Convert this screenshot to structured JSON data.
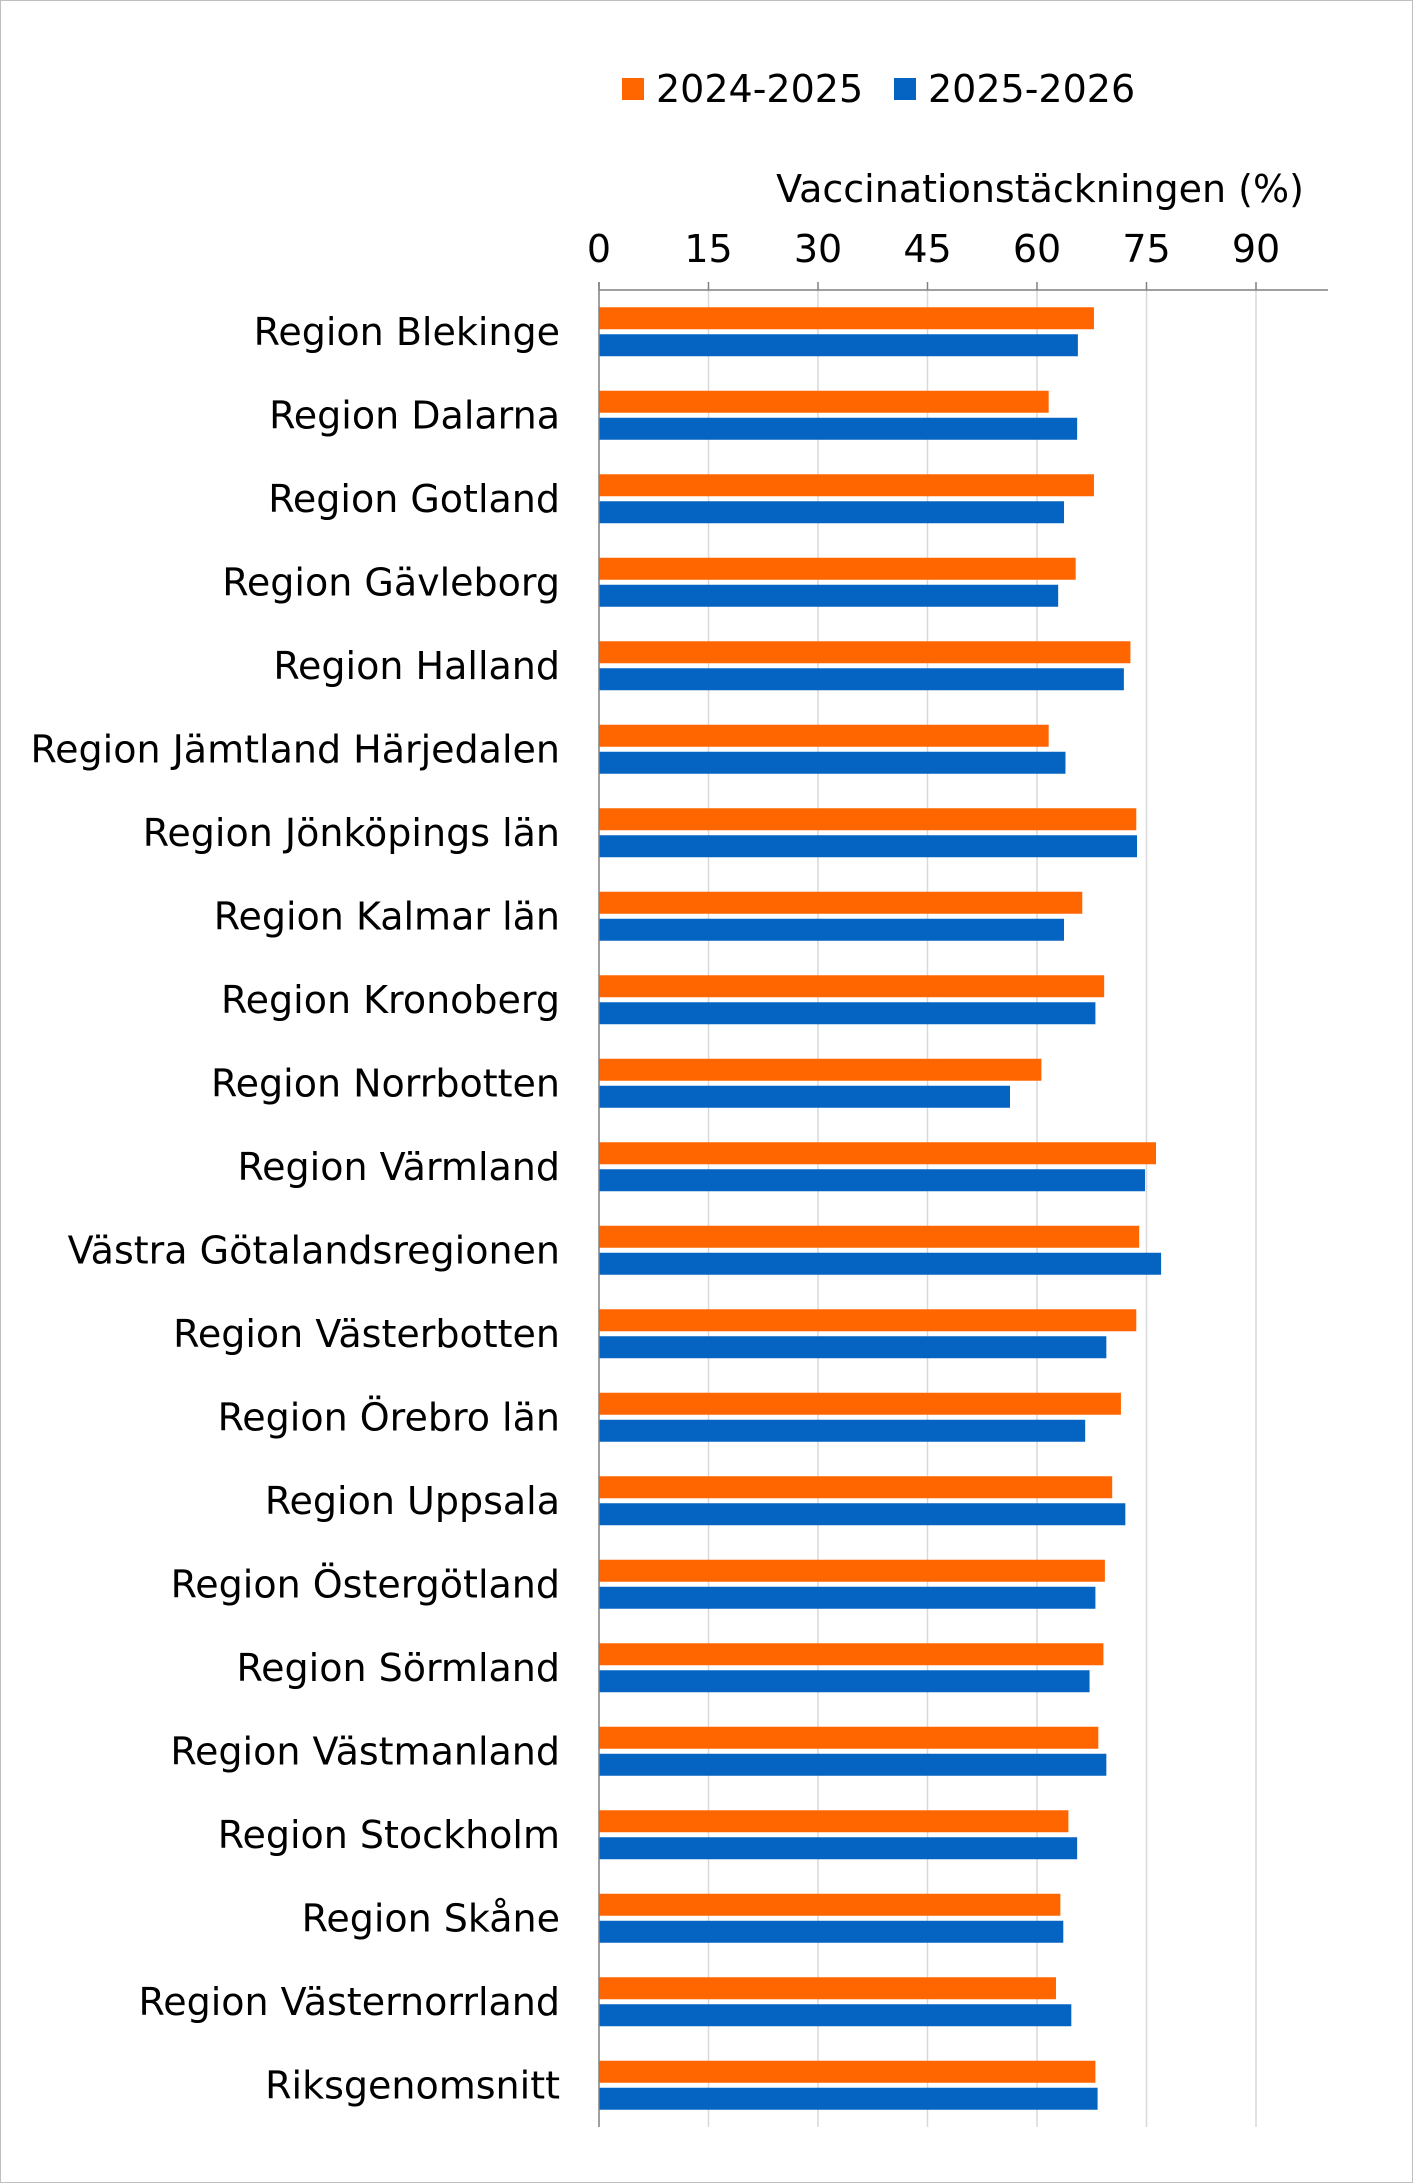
{
  "chart_data": {
    "type": "bar",
    "orientation": "horizontal",
    "xlabel": "Vaccinationstäckningen (%)",
    "xlim": [
      0,
      100
    ],
    "xticks": [
      "0",
      "15",
      "30",
      "45",
      "60",
      "75",
      "90"
    ],
    "xtick_values": [
      0,
      15,
      30,
      45,
      60,
      75,
      90
    ],
    "grid": true,
    "legend_position": "top",
    "categories": [
      "Region Blekinge",
      "Region Dalarna",
      "Region Gotland",
      "Region Gävleborg",
      "Region Halland",
      "Region Jämtland Härjedalen",
      "Region Jönköpings län",
      "Region Kalmar län",
      "Region Kronoberg",
      "Region Norrbotten",
      "Region Värmland",
      "Västra Götalandsregionen",
      "Region Västerbotten",
      "Region Örebro län",
      "Region Uppsala ",
      "Region Östergötland",
      "Region Sörmland",
      "Region Västmanland",
      "Region Stockholm",
      "Region Skåne",
      "Region Västernorrland",
      "Riksgenomsnitt"
    ],
    "series": [
      {
        "name": "2024-2025",
        "color": "#ff6600",
        "values": [
          67.8,
          61.6,
          67.8,
          65.3,
          72.8,
          61.6,
          73.6,
          66.2,
          69.2,
          60.6,
          76.3,
          74.0,
          73.6,
          71.5,
          70.3,
          69.3,
          69.1,
          68.4,
          64.3,
          63.2,
          62.6,
          68.0
        ]
      },
      {
        "name": "2025-2026",
        "color": "#0563c1",
        "values": [
          65.6,
          65.5,
          63.7,
          62.9,
          71.9,
          63.9,
          73.7,
          63.7,
          68.0,
          56.3,
          74.8,
          77.0,
          69.5,
          66.6,
          72.1,
          68.0,
          67.2,
          69.5,
          65.5,
          63.6,
          64.7,
          68.3
        ]
      }
    ]
  }
}
